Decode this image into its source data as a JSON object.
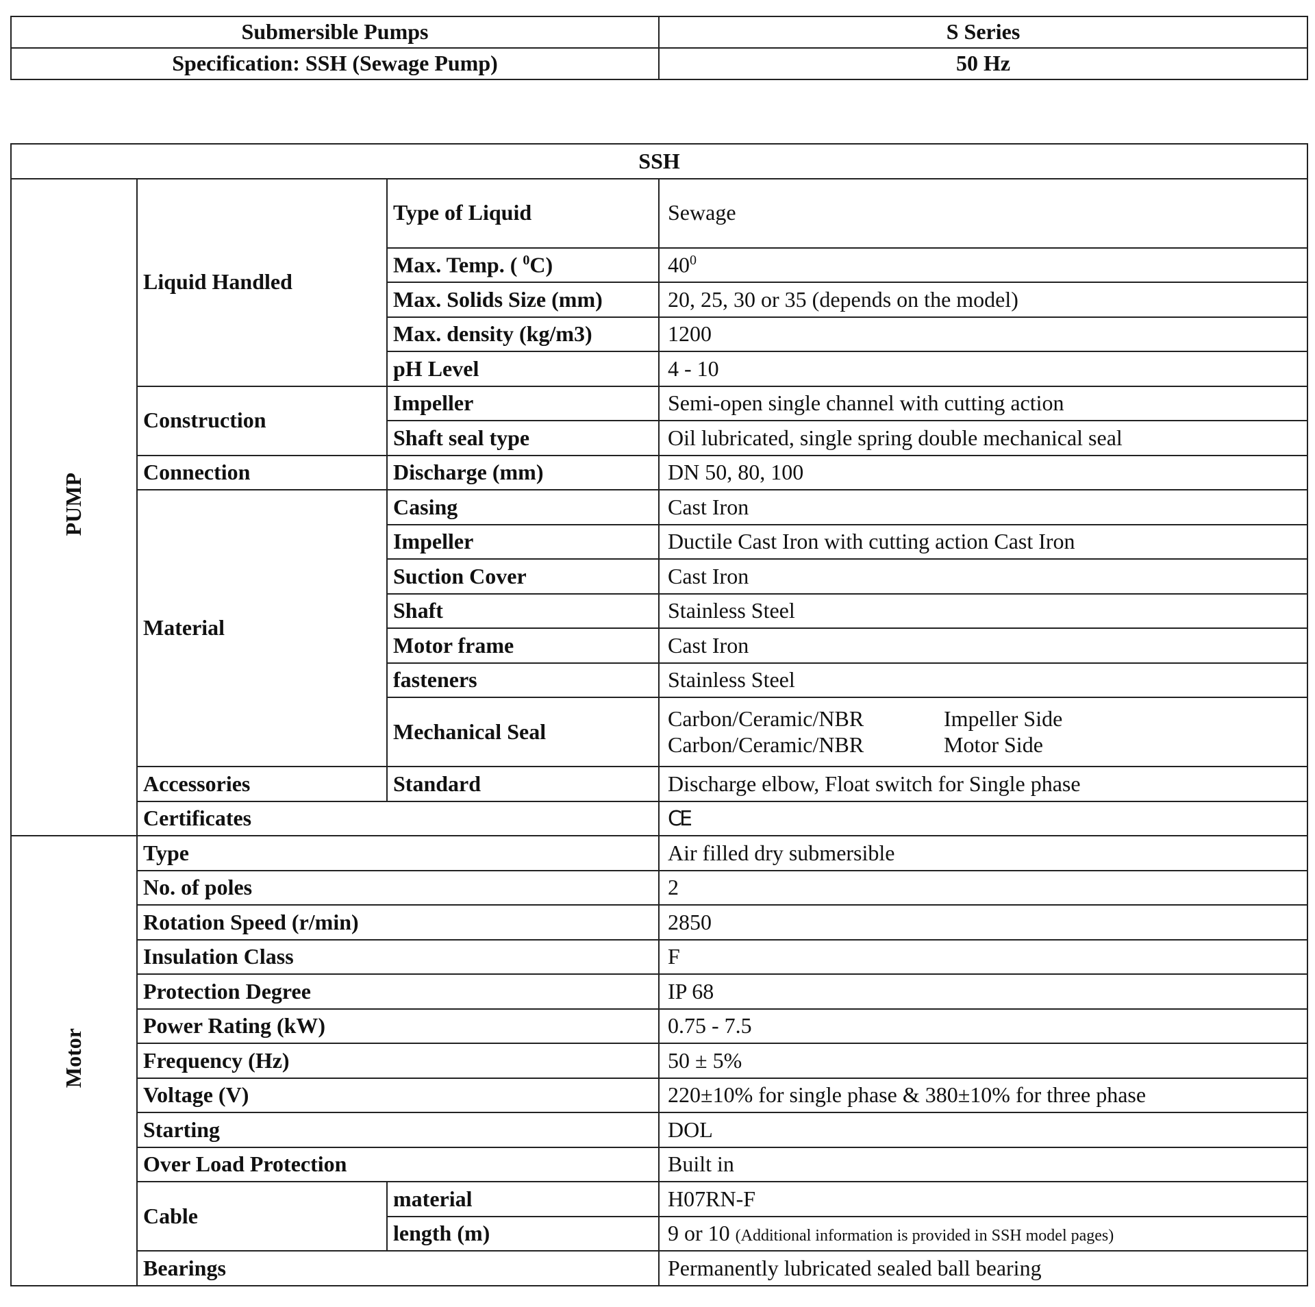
{
  "header": {
    "left_title": "Submersible Pumps",
    "right_title": "S Series",
    "left_subtitle": "Specification: SSH (Sewage Pump)",
    "right_subtitle": "50 Hz"
  },
  "table": {
    "title": "SSH",
    "pump": {
      "section": "PUMP",
      "liquid_handled": {
        "group": "Liquid Handled",
        "rows": [
          {
            "label": "Type of Liquid",
            "value": "Sewage"
          },
          {
            "label_pre": "Max. Temp. (",
            "label_sup": "0",
            "label_post": "C)",
            "value": "40",
            "value_sup": "0"
          },
          {
            "label": "Max. Solids Size (mm)",
            "value": "20, 25, 30 or 35 (depends on the model)"
          },
          {
            "label": "Max. density (kg/m3)",
            "value": "1200"
          },
          {
            "label": "pH Level",
            "value": "4 - 10"
          }
        ]
      },
      "construction": {
        "group": "Construction",
        "rows": [
          {
            "label": "Impeller",
            "value": "Semi-open single channel with cutting action"
          },
          {
            "label": "Shaft seal type",
            "value": "Oil lubricated, single spring double mechanical seal"
          }
        ]
      },
      "connection": {
        "group": "Connection",
        "rows": [
          {
            "label": "Discharge (mm)",
            "value": "DN 50, 80, 100"
          }
        ]
      },
      "material": {
        "group": "Material",
        "rows": [
          {
            "label": "Casing",
            "value": "Cast Iron"
          },
          {
            "label": "Impeller",
            "value": "Ductile Cast Iron with cutting action Cast Iron"
          },
          {
            "label": "Suction Cover",
            "value": "Cast Iron"
          },
          {
            "label": "Shaft",
            "value": "Stainless Steel"
          },
          {
            "label": "Motor frame",
            "value": "Cast Iron"
          },
          {
            "label": "fasteners",
            "value": "Stainless Steel"
          }
        ],
        "mechanical_seal": {
          "label": "Mechanical Seal",
          "lines": [
            {
              "material": "Carbon/Ceramic/NBR",
              "side": "Impeller Side"
            },
            {
              "material": "Carbon/Ceramic/NBR",
              "side": "Motor Side"
            }
          ]
        }
      },
      "accessories": {
        "group": "Accessories",
        "label": "Standard",
        "value": "Discharge elbow, Float switch for Single phase"
      },
      "certificates": {
        "label": "Certificates",
        "value": "CE",
        "icon": "ce-mark-icon"
      }
    },
    "motor": {
      "section": "Motor",
      "rows": [
        {
          "label": "Type",
          "value": "Air filled dry submersible"
        },
        {
          "label": "No. of poles",
          "value": "2"
        },
        {
          "label": "Rotation Speed (r/min)",
          "value": "2850"
        },
        {
          "label": "Insulation Class",
          "value": "F"
        },
        {
          "label": "Protection Degree",
          "value": "IP 68"
        },
        {
          "label": "Power Rating (kW)",
          "value": "0.75 - 7.5"
        },
        {
          "label": "Frequency (Hz)",
          "value": "50 ± 5%"
        },
        {
          "label": "Voltage (V)",
          "value": "220±10% for single phase & 380±10% for three phase"
        },
        {
          "label": "Starting",
          "value": "DOL"
        },
        {
          "label": "Over Load Protection",
          "value": "Built in"
        }
      ],
      "cable": {
        "group": "Cable",
        "rows": [
          {
            "label": "material",
            "value": "H07RN-F"
          },
          {
            "label": "length (m)",
            "value": "9 or 10",
            "note": "(Additional information is provided in SSH model pages)"
          }
        ]
      },
      "bearings": {
        "label": "Bearings",
        "value": "Permanently lubricated sealed ball bearing"
      }
    }
  }
}
